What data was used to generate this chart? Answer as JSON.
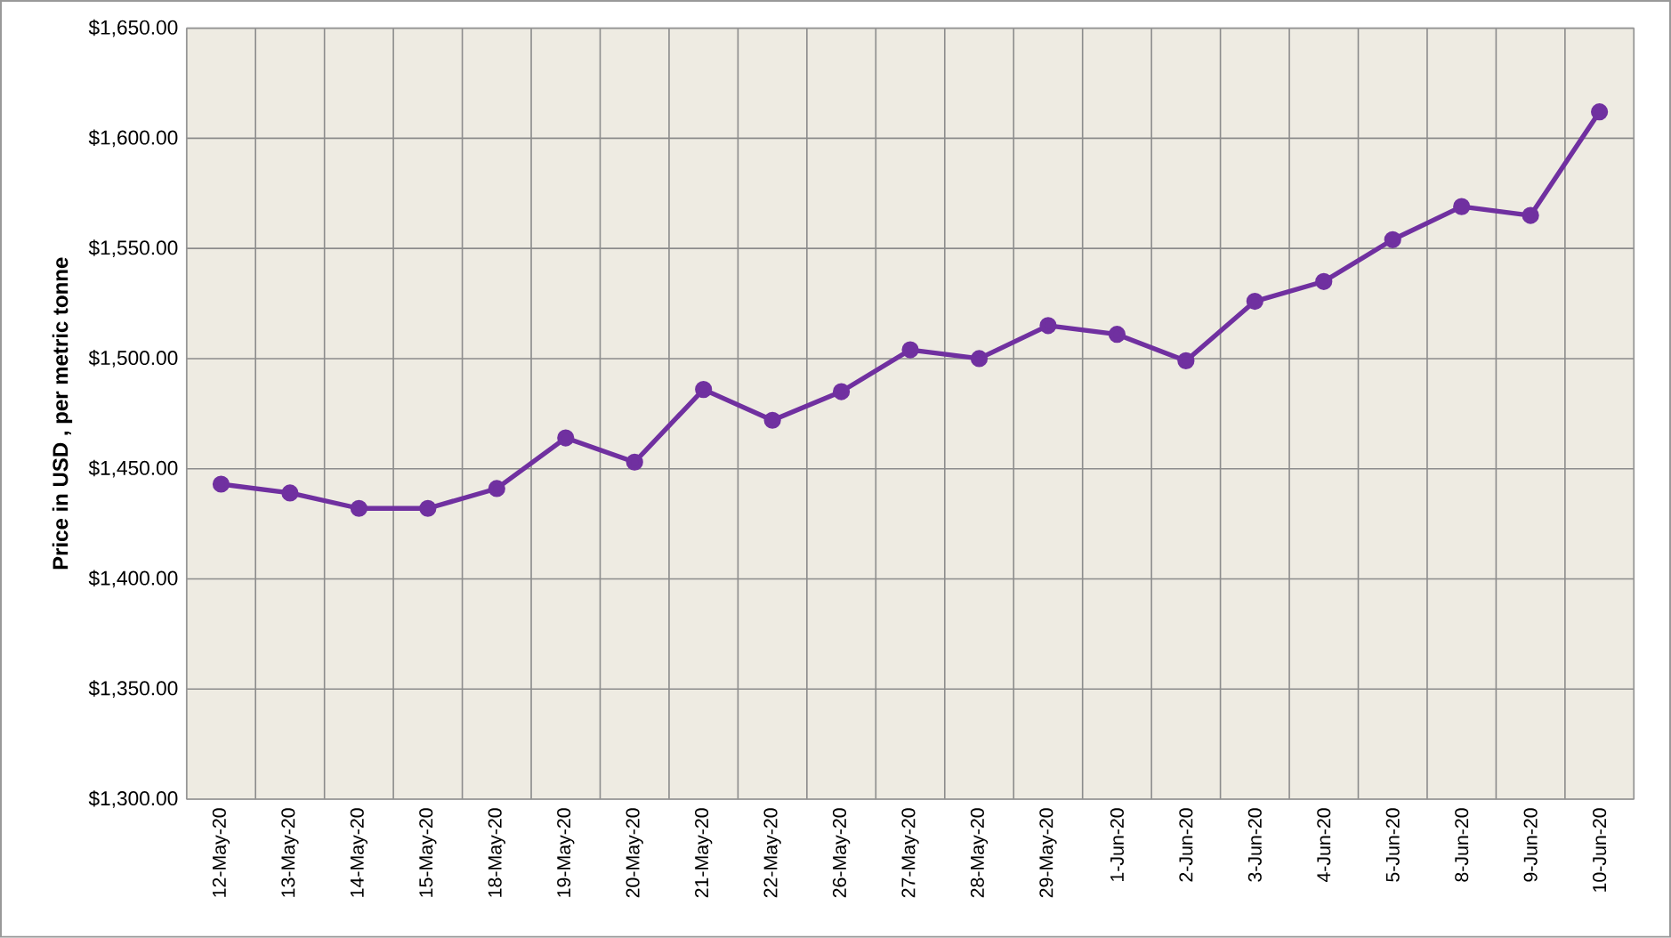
{
  "chart_data": {
    "type": "line",
    "ylabel": "Price in USD , per metric tonne",
    "categories": [
      "12-May-20",
      "13-May-20",
      "14-May-20",
      "15-May-20",
      "18-May-20",
      "19-May-20",
      "20-May-20",
      "21-May-20",
      "22-May-20",
      "26-May-20",
      "27-May-20",
      "28-May-20",
      "29-May-20",
      "1-Jun-20",
      "2-Jun-20",
      "3-Jun-20",
      "4-Jun-20",
      "5-Jun-20",
      "8-Jun-20",
      "9-Jun-20",
      "10-Jun-20"
    ],
    "series": [
      {
        "color": "#7030a0",
        "values": [
          1443,
          1439,
          1432,
          1432,
          1441,
          1464,
          1453,
          1486,
          1472,
          1485,
          1504,
          1500,
          1515,
          1511,
          1499,
          1526,
          1535,
          1554,
          1569,
          1565,
          1612
        ]
      }
    ],
    "ylim": [
      1300,
      1650
    ],
    "yticks": [
      {
        "value": 1300,
        "label": "$1,300.00"
      },
      {
        "value": 1350,
        "label": "$1,350.00"
      },
      {
        "value": 1400,
        "label": "$1,400.00"
      },
      {
        "value": 1450,
        "label": "$1,450.00"
      },
      {
        "value": 1500,
        "label": "$1,500.00"
      },
      {
        "value": 1550,
        "label": "$1,550.00"
      },
      {
        "value": 1600,
        "label": "$1,600.00"
      },
      {
        "value": 1650,
        "label": "$1,650.00"
      }
    ],
    "grid": true,
    "marker": "circle",
    "line_style": "solid"
  }
}
